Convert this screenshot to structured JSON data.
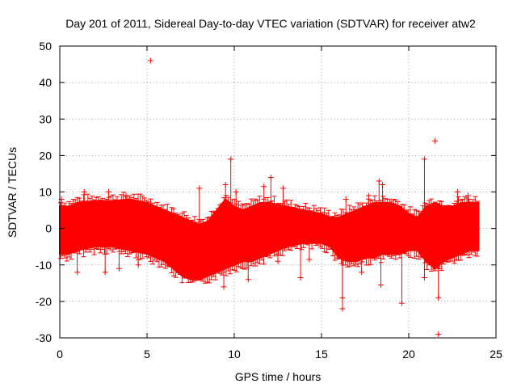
{
  "chart_data": {
    "type": "scatter",
    "title": "Day 201 of 2011, Sidereal Day-to-day VTEC variation (SDTVAR) for receiver atw2",
    "xlabel": "GPS time / hours",
    "ylabel": "SDTVAR / TECUs",
    "xlim": [
      0,
      25
    ],
    "ylim": [
      -30,
      50
    ],
    "xticks": [
      0,
      5,
      10,
      15,
      20,
      25
    ],
    "yticks": [
      -30,
      -20,
      -10,
      0,
      10,
      20,
      30,
      40,
      50
    ],
    "grid": true,
    "marker": "+",
    "color": "#ff0000",
    "dense_band": {
      "description": "continuous cloud of points between 0 and 24 h",
      "x": [
        0.0,
        0.5,
        1,
        2,
        3,
        4,
        5,
        5.5,
        6,
        6.5,
        7,
        7.5,
        8,
        8.5,
        9,
        9.5,
        10,
        10.5,
        11,
        11.5,
        12,
        13,
        14,
        15,
        15.5,
        16,
        16.5,
        17,
        17.5,
        18,
        18.5,
        19,
        19.5,
        20,
        20.5,
        21,
        21.5,
        22,
        22.5,
        23,
        23.5,
        24.0
      ],
      "upper": [
        6,
        6,
        7,
        7.5,
        7.5,
        8,
        7,
        6,
        5,
        4,
        3,
        2,
        1,
        2,
        5,
        8,
        6,
        5,
        6,
        7,
        7,
        6,
        5,
        4,
        3,
        3,
        4,
        5,
        6,
        7,
        7,
        7,
        6,
        4,
        3,
        6,
        7,
        6,
        6,
        7,
        7,
        7
      ],
      "lower": [
        -7,
        -7,
        -6,
        -5,
        -5,
        -6,
        -7,
        -8,
        -9,
        -11,
        -13,
        -14,
        -14,
        -13,
        -12,
        -11,
        -10,
        -9,
        -9,
        -8,
        -7,
        -5,
        -4,
        -4,
        -5,
        -8,
        -9,
        -9,
        -8,
        -8,
        -7,
        -7,
        -7,
        -6,
        -6,
        -9,
        -11,
        -9,
        -8,
        -7,
        -6,
        -6
      ]
    },
    "outliers": [
      {
        "x": 5.2,
        "y": 46
      },
      {
        "x": 9.8,
        "y": 19
      },
      {
        "x": 9.5,
        "y": 12
      },
      {
        "x": 11.7,
        "y": 11.5
      },
      {
        "x": 12.1,
        "y": 14
      },
      {
        "x": 12.8,
        "y": 11
      },
      {
        "x": 2.8,
        "y": 10
      },
      {
        "x": 3.8,
        "y": 9
      },
      {
        "x": 1.4,
        "y": 10
      },
      {
        "x": 0.1,
        "y": 8
      },
      {
        "x": 9.4,
        "y": -16
      },
      {
        "x": 10.8,
        "y": -14
      },
      {
        "x": 13.8,
        "y": -13.5
      },
      {
        "x": 14.3,
        "y": -8.5
      },
      {
        "x": 16.2,
        "y": -22
      },
      {
        "x": 16.2,
        "y": -19
      },
      {
        "x": 16.4,
        "y": 8
      },
      {
        "x": 17.7,
        "y": 9
      },
      {
        "x": 18.3,
        "y": 13
      },
      {
        "x": 18.5,
        "y": 12
      },
      {
        "x": 18.4,
        "y": -15.5
      },
      {
        "x": 19.6,
        "y": -20.5
      },
      {
        "x": 20.9,
        "y": 19
      },
      {
        "x": 21.5,
        "y": 24
      },
      {
        "x": 21.7,
        "y": -29
      },
      {
        "x": 21.7,
        "y": -19
      },
      {
        "x": 20.9,
        "y": -13.5
      },
      {
        "x": 1.0,
        "y": -12
      },
      {
        "x": 2.6,
        "y": -12
      },
      {
        "x": 3.4,
        "y": -11
      },
      {
        "x": 4.5,
        "y": -10
      },
      {
        "x": 8.0,
        "y": 11
      },
      {
        "x": 10.1,
        "y": 10
      },
      {
        "x": 12.5,
        "y": -9
      },
      {
        "x": 17.3,
        "y": -12
      },
      {
        "x": 22.8,
        "y": 10
      },
      {
        "x": 23.4,
        "y": 9
      },
      {
        "x": 7.2,
        "y": -8
      }
    ]
  }
}
